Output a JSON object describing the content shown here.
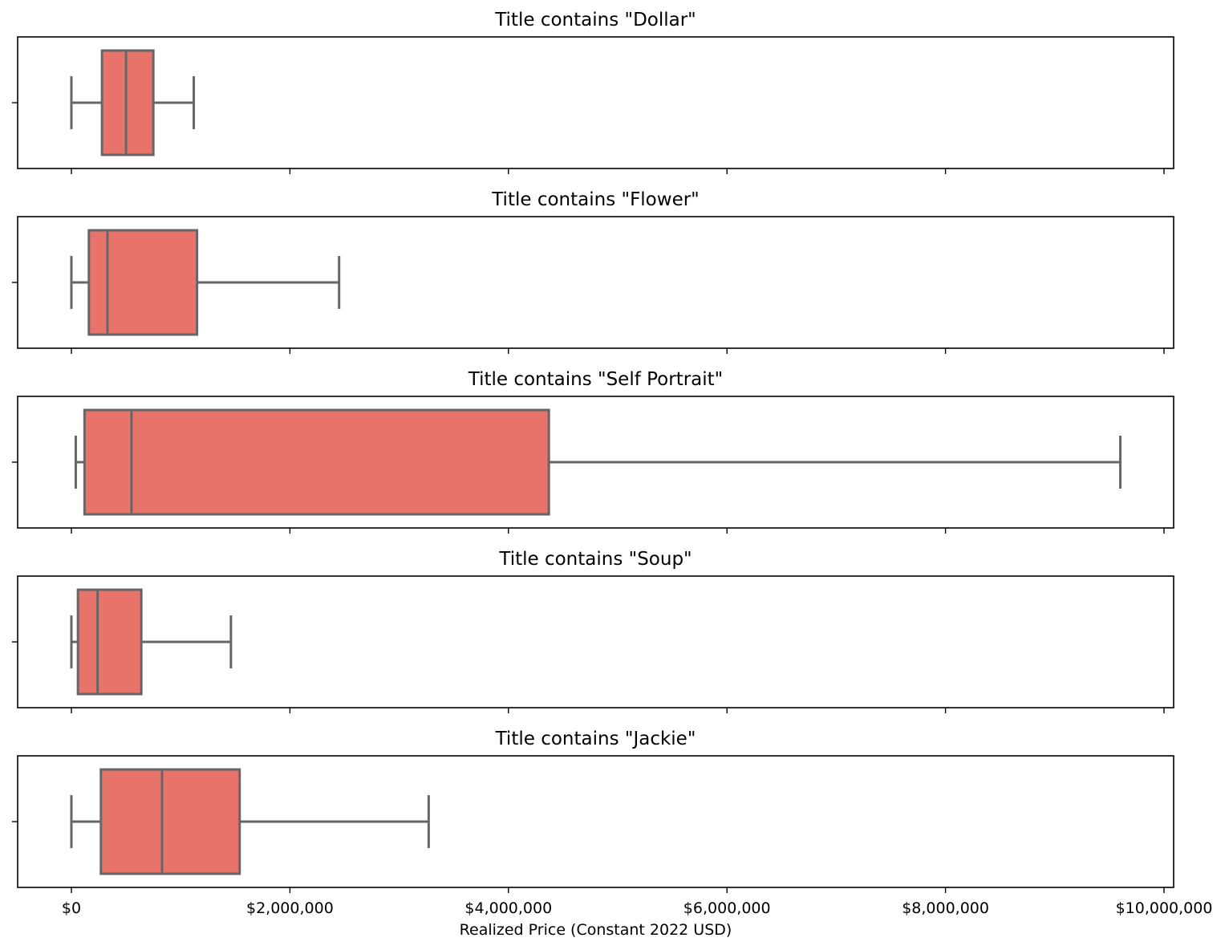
{
  "chart_data": {
    "type": "box",
    "xlabel": "Realized Price (Constant 2022 USD)",
    "xlim": [
      -500000,
      10100000
    ],
    "xticks": [
      0,
      2000000,
      4000000,
      6000000,
      8000000,
      10000000
    ],
    "xtick_labels": [
      "$0",
      "$2,000,000",
      "$4,000,000",
      "$6,000,000",
      "$8,000,000",
      "$10,000,000"
    ],
    "box_color": "#e8736b",
    "line_color": "#666666",
    "panels": [
      {
        "title": "Title contains \"Dollar\"",
        "whisker_low": 0,
        "q1": 280000,
        "median": 500000,
        "q3": 750000,
        "whisker_high": 1120000
      },
      {
        "title": "Title contains \"Flower\"",
        "whisker_low": 0,
        "q1": 160000,
        "median": 330000,
        "q3": 1150000,
        "whisker_high": 2450000
      },
      {
        "title": "Title contains \"Self Portrait\"",
        "whisker_low": 40000,
        "q1": 120000,
        "median": 550000,
        "q3": 4370000,
        "whisker_high": 9600000
      },
      {
        "title": "Title contains \"Soup\"",
        "whisker_low": 0,
        "q1": 60000,
        "median": 240000,
        "q3": 640000,
        "whisker_high": 1460000
      },
      {
        "title": "Title contains \"Jackie\"",
        "whisker_low": 0,
        "q1": 270000,
        "median": 830000,
        "q3": 1540000,
        "whisker_high": 3270000
      }
    ]
  }
}
